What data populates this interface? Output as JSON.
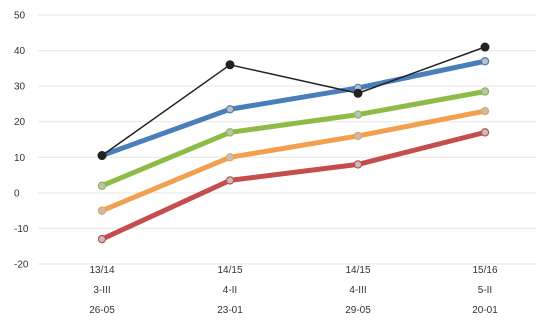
{
  "chart_data": {
    "type": "line",
    "x": [
      [
        "13/14",
        "3-III",
        "26-05"
      ],
      [
        "14/15",
        "4-II",
        "23-01"
      ],
      [
        "14/15",
        "4-III",
        "29-05"
      ],
      [
        "15/16",
        "5-II",
        "20-01"
      ]
    ],
    "y_ticks": [
      -20,
      -10,
      0,
      10,
      20,
      30,
      40,
      50
    ],
    "ylim": [
      -20,
      50
    ],
    "grid": true,
    "legend": "none",
    "series": [
      {
        "values": [
          10.5,
          36,
          28,
          41
        ],
        "color": "#222222",
        "style": "thin-with-markers"
      },
      {
        "values": [
          10.5,
          23.5,
          29.5,
          37
        ],
        "color": "#4a7ebb",
        "style": "thick"
      },
      {
        "values": [
          2,
          17,
          22,
          28.5
        ],
        "color": "#8dbb46",
        "style": "thick"
      },
      {
        "values": [
          -5,
          10,
          16,
          23
        ],
        "color": "#f2a04f",
        "style": "thick"
      },
      {
        "values": [
          -13,
          3.5,
          8,
          17
        ],
        "color": "#c44d4d",
        "style": "thick"
      }
    ]
  }
}
